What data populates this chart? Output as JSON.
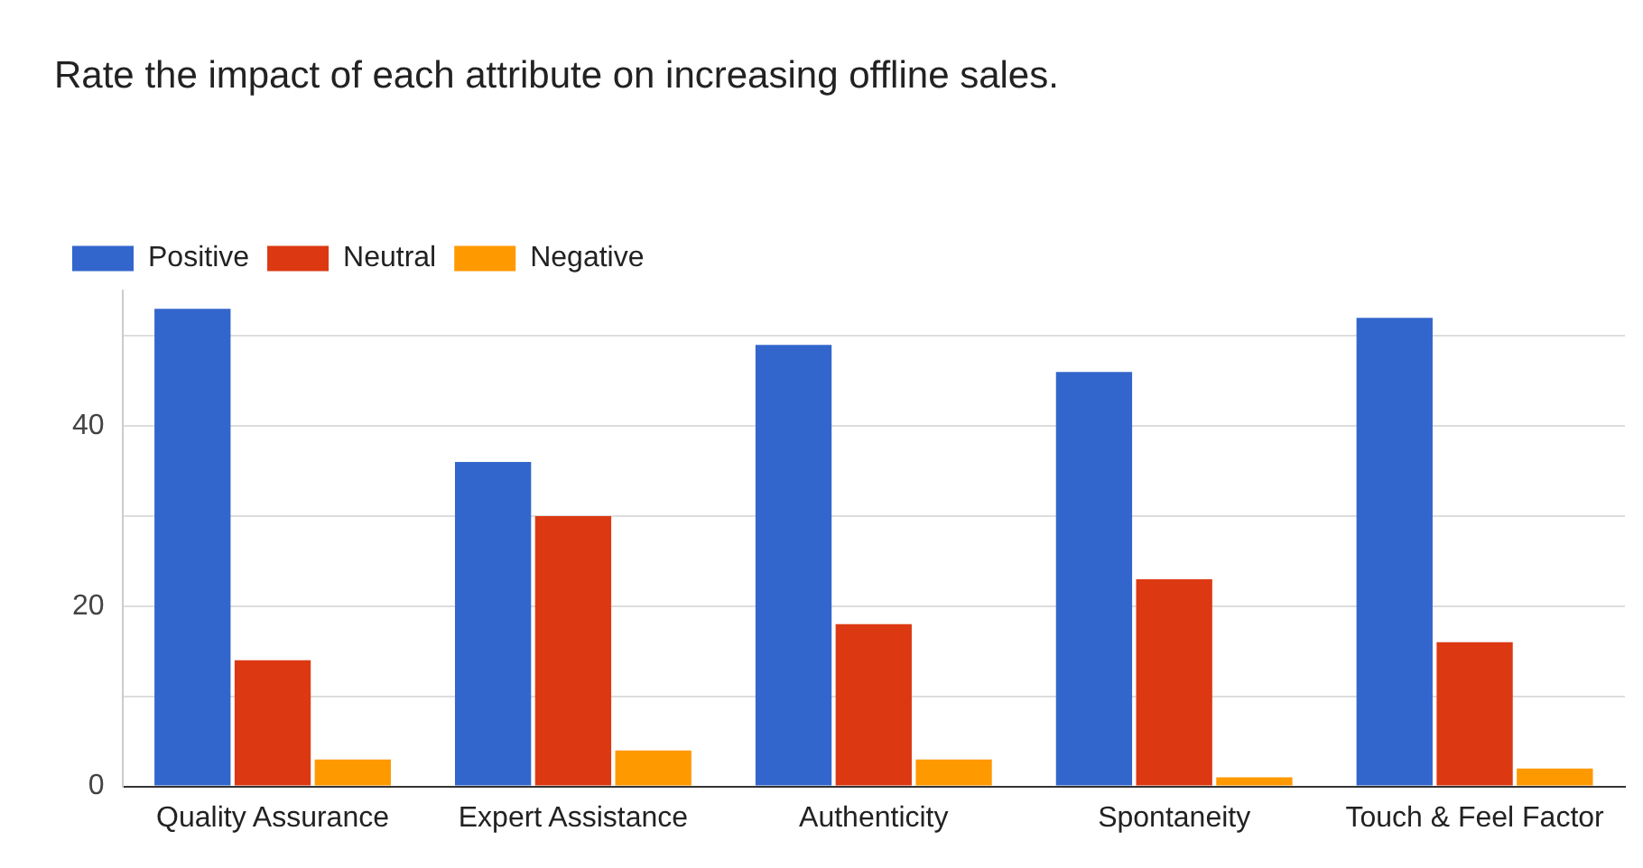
{
  "chart_data": {
    "type": "bar",
    "title": "Rate the impact of each attribute on increasing offline sales.",
    "categories": [
      "Quality Assurance",
      "Expert Assistance",
      "Authenticity",
      "Spontaneity",
      "Touch & Feel Factor"
    ],
    "series": [
      {
        "name": "Positive",
        "color": "#3366cc",
        "values": [
          53,
          36,
          49,
          46,
          52
        ]
      },
      {
        "name": "Neutral",
        "color": "#dc3912",
        "values": [
          14,
          30,
          18,
          23,
          16
        ]
      },
      {
        "name": "Negative",
        "color": "#ff9900",
        "values": [
          3,
          4,
          3,
          1,
          2
        ]
      }
    ],
    "ylim": [
      0,
      55
    ],
    "yticks": [
      0,
      {
        "value": 10,
        "label": null
      },
      20,
      {
        "value": 30,
        "label": null
      },
      40,
      {
        "value": 50,
        "label": null
      }
    ],
    "grid": "y",
    "legend": "top left"
  }
}
